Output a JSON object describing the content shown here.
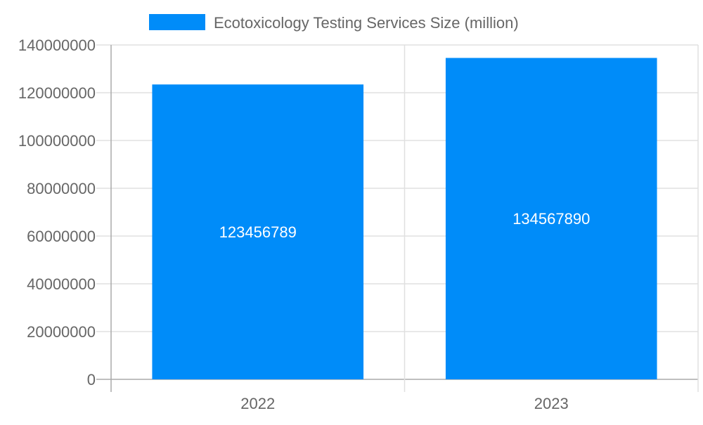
{
  "chart_data": {
    "type": "bar",
    "categories": [
      "2022",
      "2023"
    ],
    "series": [
      {
        "name": "Ecotoxicology Testing Services Size (million)",
        "values": [
          123456789,
          134567890
        ],
        "color": "#008cf9"
      }
    ],
    "data_labels": [
      "123456789",
      "134567890"
    ],
    "title": "",
    "xlabel": "",
    "ylabel": "",
    "ylim": [
      0,
      140000000
    ],
    "yticks": [
      "0",
      "20000000",
      "40000000",
      "60000000",
      "80000000",
      "100000000",
      "120000000",
      "140000000"
    ],
    "grid": true,
    "legend": "top-center"
  }
}
